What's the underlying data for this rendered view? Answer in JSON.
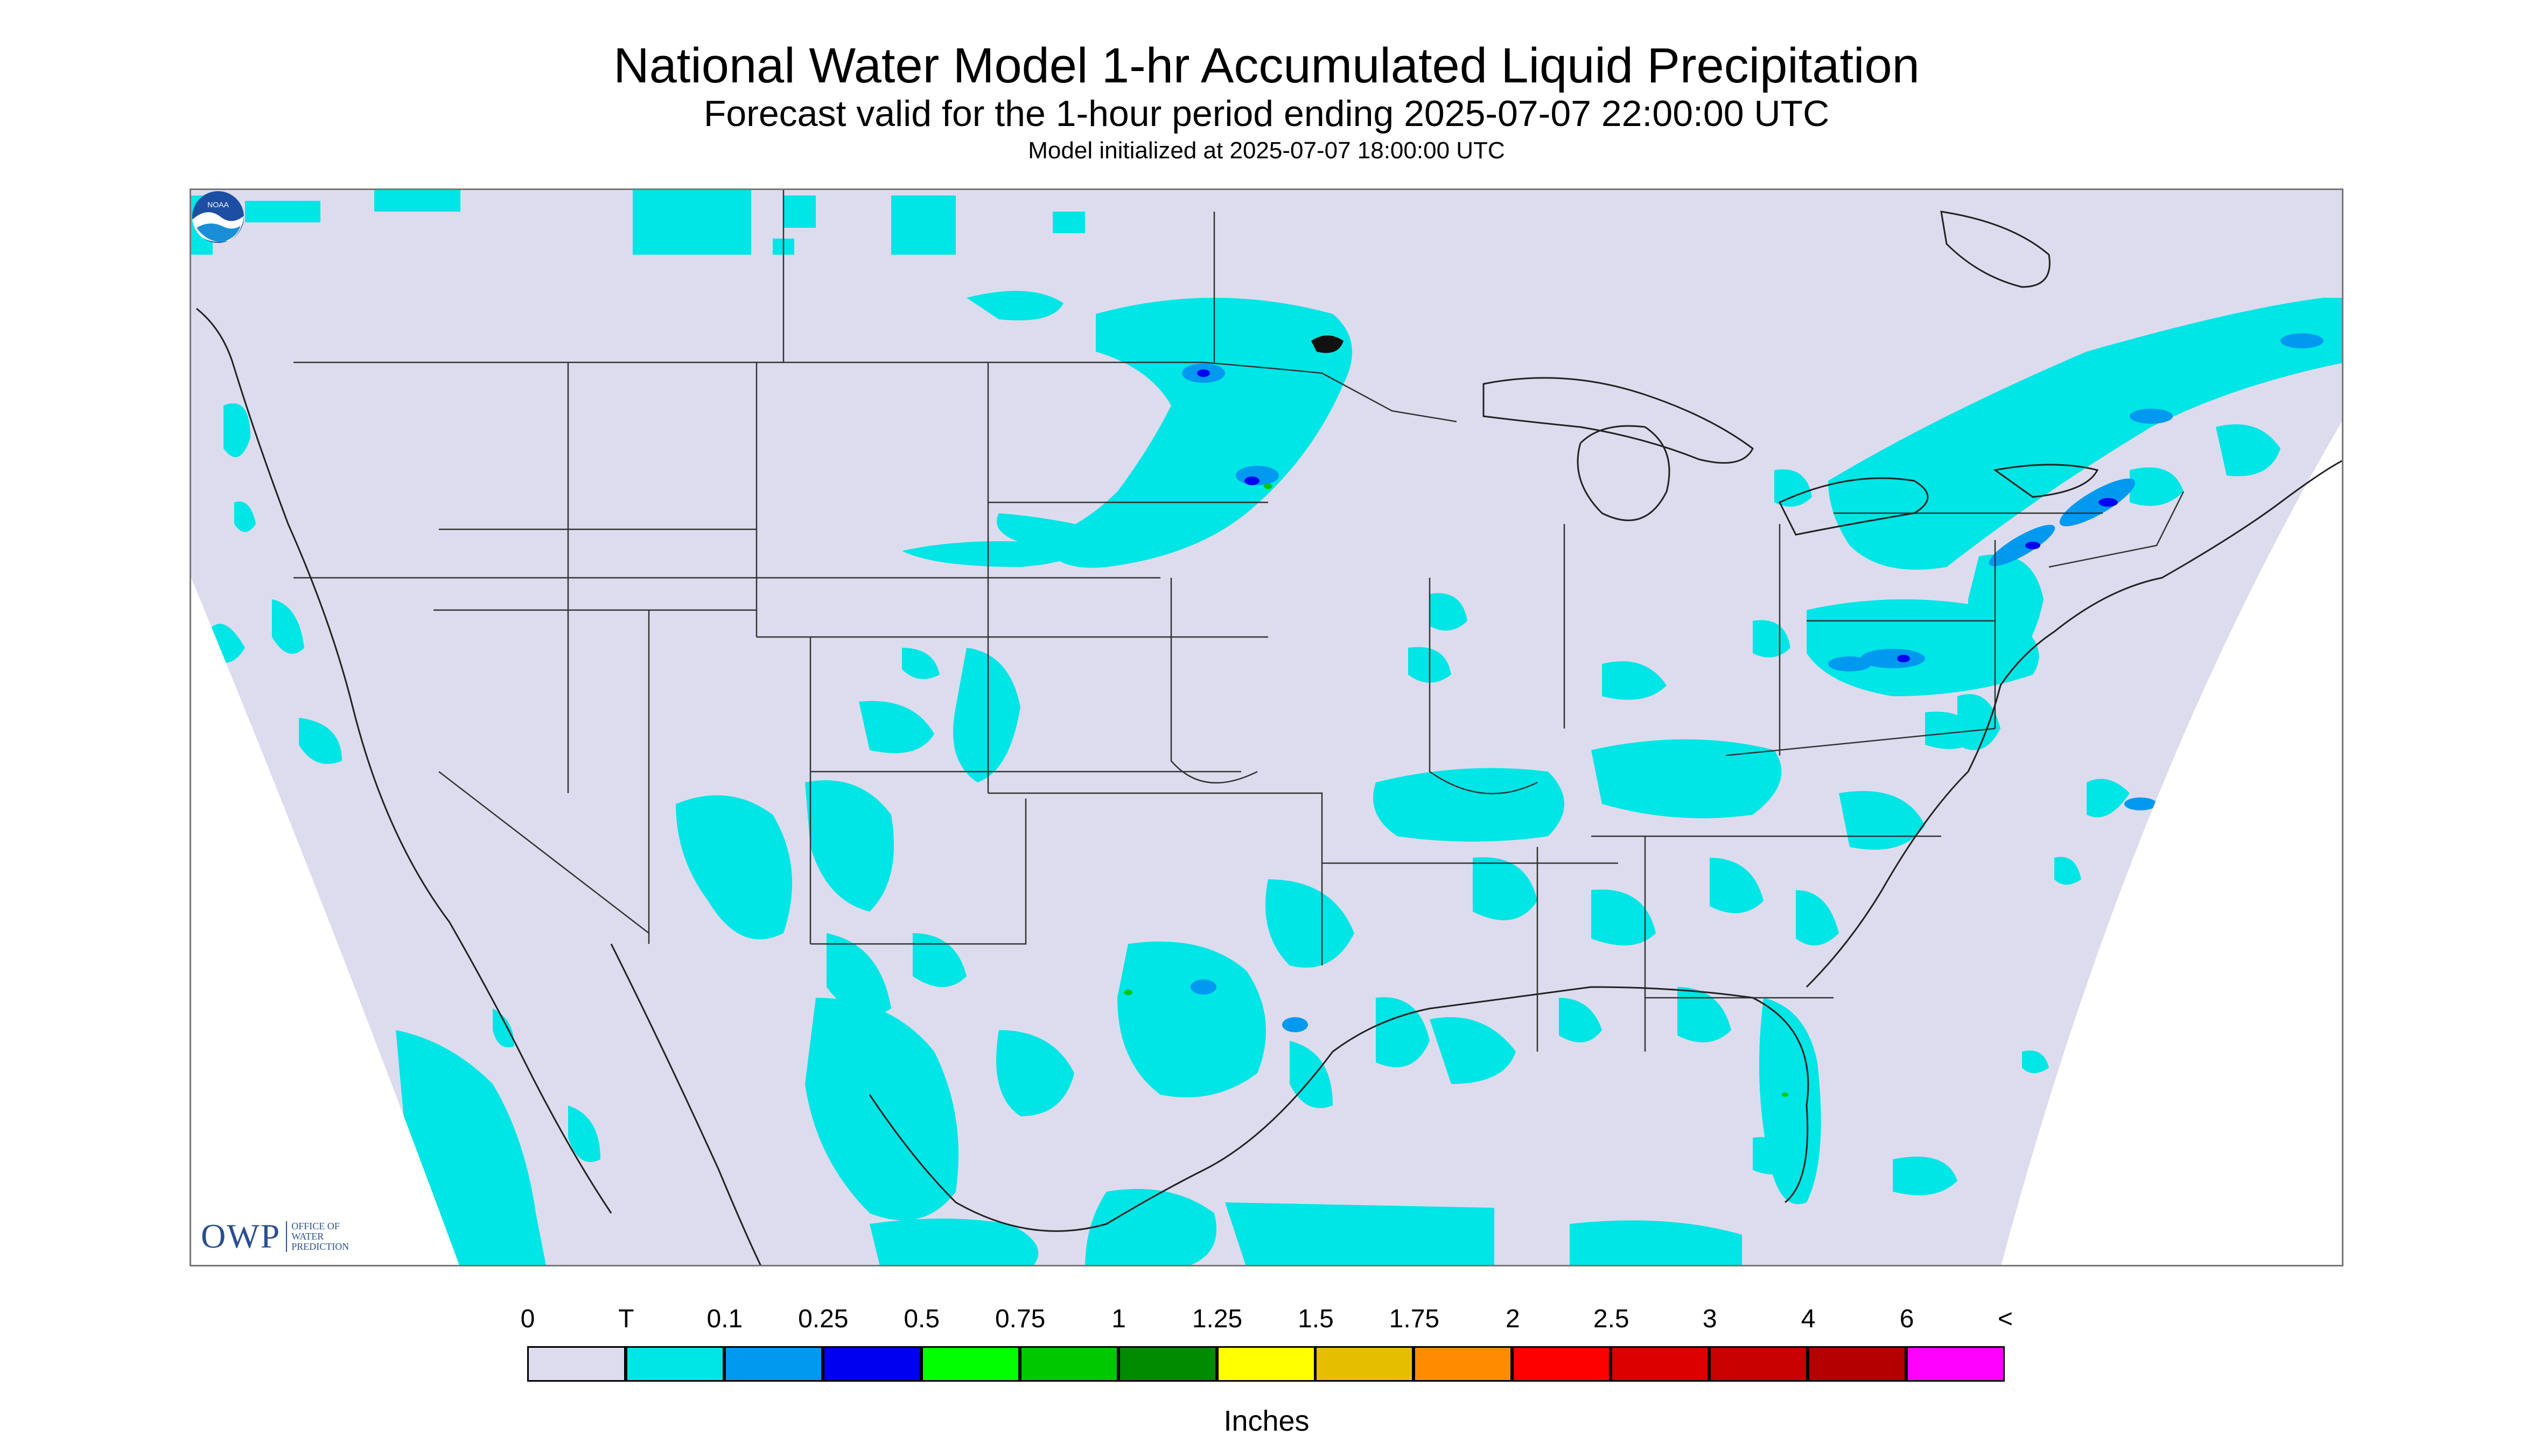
{
  "header": {
    "title": "National Water Model 1-hr Accumulated Liquid Precipitation",
    "subtitle": "Forecast valid for the 1-hour period ending 2025-07-07 22:00:00 UTC",
    "init": "Model initialized at 2025-07-07 18:00:00 UTC"
  },
  "logo": {
    "owp_text": "OWP",
    "owp_sub": "OFFICE OF WATER PREDICTION",
    "noaa_text": "NOAA"
  },
  "legend": {
    "units": "Inches",
    "labels": [
      "0",
      "T",
      "0.1",
      "0.25",
      "0.5",
      "0.75",
      "1",
      "1.25",
      "1.5",
      "1.75",
      "2",
      "2.5",
      "3",
      "4",
      "6",
      "<"
    ],
    "colors": [
      "#dcdcee",
      "#00e5e5",
      "#0099f0",
      "#0000f0",
      "#00ff00",
      "#00c800",
      "#008c00",
      "#ffff00",
      "#e6be00",
      "#ff8c00",
      "#ff0000",
      "#dc0000",
      "#c80000",
      "#b40000",
      "#ff00ff",
      "#9b4dca"
    ]
  },
  "colors": {
    "background": "#dcdcee",
    "outside": "#ffffff",
    "light_precip": "#00e5e5",
    "moderate_precip": "#0099f0",
    "heavy_precip": "#0000f0",
    "borders": "#333333"
  }
}
